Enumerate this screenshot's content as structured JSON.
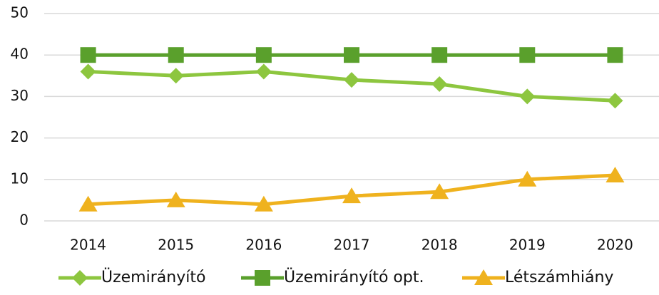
{
  "chart_data": {
    "type": "line",
    "categories": [
      "2014",
      "2015",
      "2016",
      "2017",
      "2018",
      "2019",
      "2020"
    ],
    "series": [
      {
        "name": "Üzemirányító",
        "color": "#8dc63f",
        "marker": "diamond",
        "values": [
          36,
          35,
          36,
          34,
          33,
          30,
          29
        ]
      },
      {
        "name": "Üzemirányító opt.",
        "color": "#5aa02c",
        "marker": "square",
        "values": [
          40,
          40,
          40,
          40,
          40,
          40,
          40
        ]
      },
      {
        "name": "Létszámhiány",
        "color": "#efb21e",
        "marker": "triangle",
        "values": [
          4,
          5,
          4,
          6,
          7,
          10,
          11
        ]
      }
    ],
    "ylim": [
      0,
      50
    ],
    "yticks": [
      0,
      10,
      20,
      30,
      40,
      50
    ],
    "grid": true,
    "legend": "bottom"
  }
}
